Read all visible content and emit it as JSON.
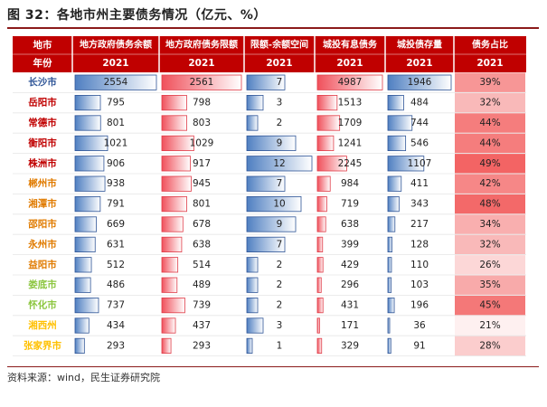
{
  "title": "图 32：各地市州主要债务情况（亿元、%）",
  "source": "资料来源：wind，民生证券研究院",
  "colors": {
    "header_bg": "#c00000",
    "header_text": "#ffffff",
    "bar_blue": "#5b87c5",
    "bar_red": "#f0616a",
    "heat_red": "#f25a5a"
  },
  "chart_data": {
    "type": "table",
    "header_row1": [
      "地市",
      "地方政府债务余额",
      "地方政府债务限额",
      "限额-余额空间",
      "城投有息债务",
      "城投债存量",
      "债务占比"
    ],
    "header_row2": [
      "年份",
      "2021",
      "2021",
      "2021",
      "2021",
      "2021",
      "2021"
    ],
    "rows": [
      {
        "city": "长沙市",
        "city_color": "#2f5597",
        "balance": 2554,
        "limit": 2561,
        "space": 7,
        "lgfv_debt": 4987,
        "lgfv_bonds": 1946,
        "ratio": "39%",
        "ratio_value": 39
      },
      {
        "city": "岳阳市",
        "city_color": "#c00000",
        "balance": 795,
        "limit": 798,
        "space": 3,
        "lgfv_debt": 1513,
        "lgfv_bonds": 484,
        "ratio": "32%",
        "ratio_value": 32
      },
      {
        "city": "常德市",
        "city_color": "#c00000",
        "balance": 801,
        "limit": 803,
        "space": 2,
        "lgfv_debt": 1709,
        "lgfv_bonds": 744,
        "ratio": "44%",
        "ratio_value": 44
      },
      {
        "city": "衡阳市",
        "city_color": "#c00000",
        "balance": 1021,
        "limit": 1029,
        "space": 9,
        "lgfv_debt": 1241,
        "lgfv_bonds": 546,
        "ratio": "44%",
        "ratio_value": 44
      },
      {
        "city": "株洲市",
        "city_color": "#c00000",
        "balance": 906,
        "limit": 917,
        "space": 12,
        "lgfv_debt": 2245,
        "lgfv_bonds": 1107,
        "ratio": "49%",
        "ratio_value": 49
      },
      {
        "city": "郴州市",
        "city_color": "#e07b00",
        "balance": 938,
        "limit": 945,
        "space": 7,
        "lgfv_debt": 984,
        "lgfv_bonds": 411,
        "ratio": "42%",
        "ratio_value": 42
      },
      {
        "city": "湘潭市",
        "city_color": "#e07b00",
        "balance": 791,
        "limit": 801,
        "space": 10,
        "lgfv_debt": 719,
        "lgfv_bonds": 343,
        "ratio": "48%",
        "ratio_value": 48
      },
      {
        "city": "邵阳市",
        "city_color": "#e07b00",
        "balance": 669,
        "limit": 678,
        "space": 9,
        "lgfv_debt": 638,
        "lgfv_bonds": 217,
        "ratio": "34%",
        "ratio_value": 34
      },
      {
        "city": "永州市",
        "city_color": "#e07b00",
        "balance": 631,
        "limit": 638,
        "space": 7,
        "lgfv_debt": 399,
        "lgfv_bonds": 128,
        "ratio": "32%",
        "ratio_value": 32
      },
      {
        "city": "益阳市",
        "city_color": "#e07b00",
        "balance": 512,
        "limit": 514,
        "space": 2,
        "lgfv_debt": 429,
        "lgfv_bonds": 110,
        "ratio": "26%",
        "ratio_value": 26
      },
      {
        "city": "娄底市",
        "city_color": "#8cc63f",
        "balance": 486,
        "limit": 489,
        "space": 2,
        "lgfv_debt": 296,
        "lgfv_bonds": 103,
        "ratio": "35%",
        "ratio_value": 35
      },
      {
        "city": "怀化市",
        "city_color": "#8cc63f",
        "balance": 737,
        "limit": 739,
        "space": 2,
        "lgfv_debt": 431,
        "lgfv_bonds": 196,
        "ratio": "45%",
        "ratio_value": 45
      },
      {
        "city": "湘西州",
        "city_color": "#ffc000",
        "balance": 434,
        "limit": 437,
        "space": 3,
        "lgfv_debt": 171,
        "lgfv_bonds": 36,
        "ratio": "21%",
        "ratio_value": 21
      },
      {
        "city": "张家界市",
        "city_color": "#ffc000",
        "balance": 293,
        "limit": 293,
        "space": 1,
        "lgfv_debt": 329,
        "lgfv_bonds": 91,
        "ratio": "28%",
        "ratio_value": 28
      }
    ]
  }
}
